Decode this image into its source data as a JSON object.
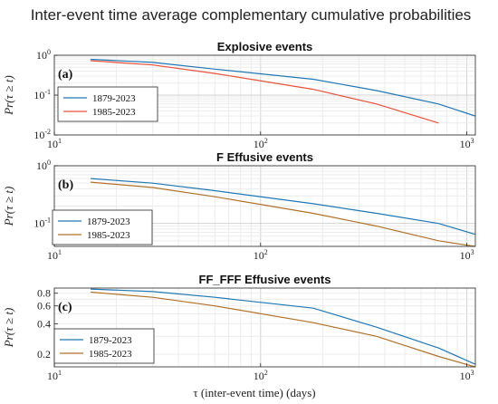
{
  "figure_title": "Inter-event time average complementary cumulative probabilities",
  "xlabel": "τ (inter-event time) (days)",
  "colors": {
    "series1": "#1f77b4",
    "series2_a": "#e8513a",
    "series2_bc": "#b0722a"
  },
  "chart_data": [
    {
      "type": "line",
      "title": "Explosive events",
      "panel_label": "(a)",
      "ylabel": "Pr(τ ≥ t)",
      "xscale": "log",
      "yscale": "log",
      "xlim": [
        10,
        1100
      ],
      "ylim": [
        0.01,
        1
      ],
      "yticks": [
        0.01,
        0.1,
        1
      ],
      "yticklabels": [
        "10^-2",
        "10^-1",
        "10^0"
      ],
      "xticks": [
        10,
        100,
        1000
      ],
      "xticklabels": [
        "10^1",
        "10^2",
        "10^3"
      ],
      "grid": true,
      "legend": "lower-left",
      "series": [
        {
          "name": "1879-2023",
          "x": [
            15,
            30,
            60,
            180,
            365,
            730,
            1095
          ],
          "y": [
            0.79,
            0.66,
            0.45,
            0.25,
            0.13,
            0.06,
            0.03
          ]
        },
        {
          "name": "1985-2023",
          "x": [
            15,
            30,
            60,
            180,
            365,
            730
          ],
          "y": [
            0.73,
            0.57,
            0.35,
            0.14,
            0.06,
            0.02
          ]
        }
      ]
    },
    {
      "type": "line",
      "title": "F Effusive events",
      "panel_label": "(b)",
      "ylabel": "Pr(τ ≥ t)",
      "xscale": "log",
      "yscale": "log",
      "xlim": [
        10,
        1100
      ],
      "ylim": [
        0.04,
        1
      ],
      "yticks": [
        0.1,
        1
      ],
      "yticklabels": [
        "10^-1",
        "10^0"
      ],
      "xticks": [
        10,
        100,
        1000
      ],
      "xticklabels": [
        "10^1",
        "10^2",
        "10^3"
      ],
      "grid": true,
      "legend": "lower-left",
      "series": [
        {
          "name": "1879-2023",
          "x": [
            15,
            30,
            60,
            180,
            365,
            730,
            1095
          ],
          "y": [
            0.6,
            0.5,
            0.37,
            0.22,
            0.15,
            0.1,
            0.065
          ]
        },
        {
          "name": "1985-2023",
          "x": [
            15,
            30,
            60,
            180,
            365,
            730,
            1095
          ],
          "y": [
            0.52,
            0.42,
            0.29,
            0.15,
            0.09,
            0.05,
            0.04
          ]
        }
      ]
    },
    {
      "type": "line",
      "title": "FF_FFF Effusive  events",
      "panel_label": "(c)",
      "ylabel": "Pr(τ ≥ t)",
      "xscale": "log",
      "yscale": "log",
      "xlim": [
        10,
        1100
      ],
      "ylim": [
        0.15,
        0.9
      ],
      "yticks": [
        0.2,
        0.4,
        0.6,
        0.8
      ],
      "yticklabels": [
        "0.2",
        "0.4",
        "0.6",
        "0.8"
      ],
      "xticks": [
        10,
        100,
        1000
      ],
      "xticklabels": [
        "10^1",
        "10^2",
        "10^3"
      ],
      "grid": true,
      "legend": "lower-left",
      "series": [
        {
          "name": "1879-2023",
          "x": [
            15,
            30,
            60,
            180,
            365,
            730,
            1095
          ],
          "y": [
            0.88,
            0.83,
            0.73,
            0.57,
            0.37,
            0.23,
            0.16
          ]
        },
        {
          "name": "1985-2023",
          "x": [
            15,
            30,
            60,
            180,
            365,
            730,
            1095
          ],
          "y": [
            0.82,
            0.73,
            0.6,
            0.41,
            0.3,
            0.19,
            0.15
          ]
        }
      ]
    }
  ]
}
